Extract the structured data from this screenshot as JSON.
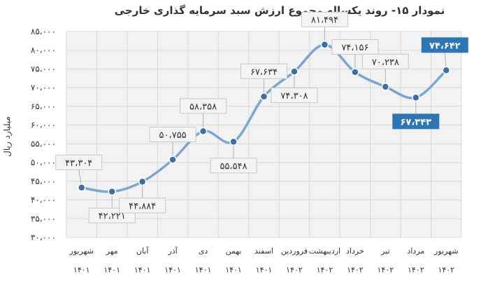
{
  "chart_data": {
    "type": "line",
    "title": "نمودار ۱۵- روند یکساله مجموع ارزش سبد سرمایه گذاری خارجی",
    "xlabel": "",
    "ylabel": "میلیارد ریال",
    "ylim": [
      30000,
      85000
    ],
    "y_ticks": [
      "۳۰،۰۰۰",
      "۳۵،۰۰۰",
      "۴۰،۰۰۰",
      "۴۵،۰۰۰",
      "۵۰،۰۰۰",
      "۵۵،۰۰۰",
      "۶۰،۰۰۰",
      "۶۵،۰۰۰",
      "۷۰،۰۰۰",
      "۷۵،۰۰۰",
      "۸۰،۰۰۰",
      "۸۵،۰۰۰"
    ],
    "grid": true,
    "categories": [
      {
        "month": "شهریور",
        "year": "۱۴۰۱"
      },
      {
        "month": "مهر",
        "year": "۱۴۰۱"
      },
      {
        "month": "آبان",
        "year": "۱۴۰۱"
      },
      {
        "month": "آذر",
        "year": "۱۴۰۱"
      },
      {
        "month": "دی",
        "year": "۱۴۰۱"
      },
      {
        "month": "بهمن",
        "year": "۱۴۰۱"
      },
      {
        "month": "اسفند",
        "year": "۱۴۰۱"
      },
      {
        "month": "فروردین",
        "year": "۱۴۰۲"
      },
      {
        "month": "اردیبهشت",
        "year": "۱۴۰۲"
      },
      {
        "month": "خرداد",
        "year": "۱۴۰۲"
      },
      {
        "month": "تیر",
        "year": "۱۴۰۲"
      },
      {
        "month": "مرداد",
        "year": "۱۴۰۲"
      },
      {
        "month": "شهریور",
        "year": "۱۴۰۲"
      }
    ],
    "values": [
      43304,
      42221,
      44884,
      50755,
      58358,
      55548,
      67634,
      74308,
      81494,
      74156,
      70238,
      67343,
      74642
    ],
    "labels": [
      "۴۳،۳۰۴",
      "۴۲،۲۲۱",
      "۴۴،۸۸۴",
      "۵۰،۷۵۵",
      "۵۸،۳۵۸",
      "۵۵،۵۴۸",
      "۶۷،۶۳۴",
      "۷۴،۳۰۸",
      "۸۱،۴۹۴",
      "۷۴،۱۵۶",
      "۷۰،۲۳۸",
      "۶۷،۳۴۳",
      "۷۴،۶۴۲"
    ],
    "highlighted": [
      11,
      12
    ],
    "colors": {
      "line": "#7aa6d1",
      "marker": "#3a6fa8",
      "highlight_box": "#2e75b6",
      "plot_bg": "#f2f2f2",
      "grid": "#d9d9d9"
    }
  }
}
